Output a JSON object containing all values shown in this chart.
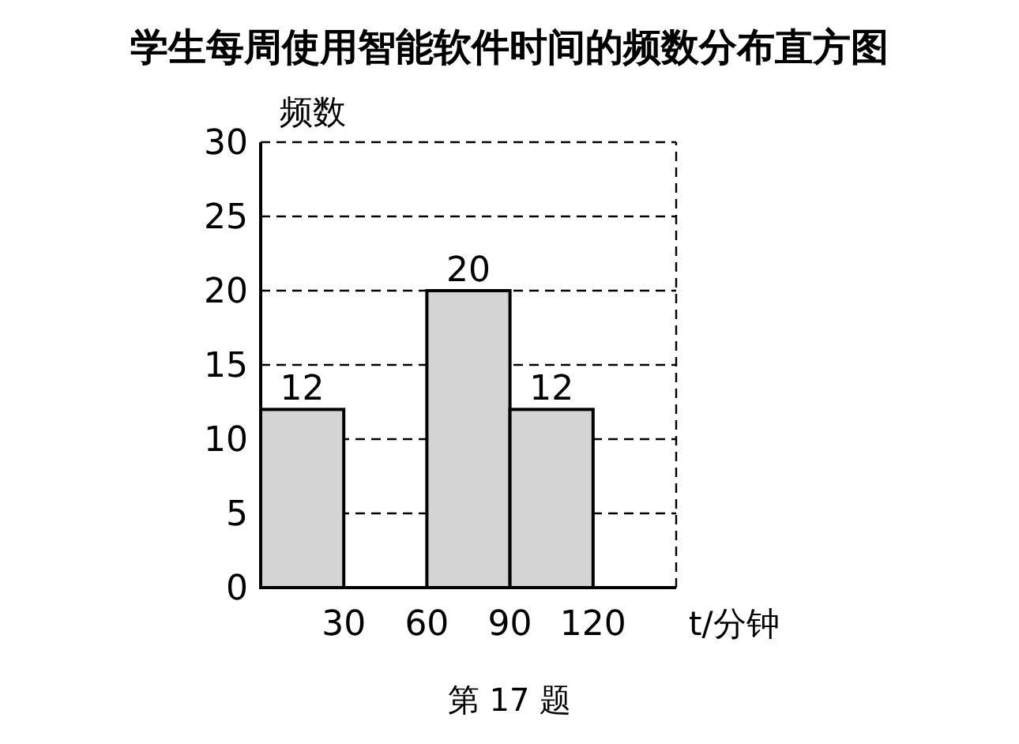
{
  "chart_data": {
    "type": "histogram",
    "title": "学生每周使用智能软件时间的频数分布直方图",
    "xlabel": "t/分钟",
    "ylabel": "频数",
    "bins": [
      0,
      30,
      60,
      90,
      120
    ],
    "values": [
      12,
      null,
      20,
      12
    ],
    "color": "#d4d4d4",
    "data_labels": true,
    "xlim": [
      0,
      150
    ],
    "xticks": [
      30,
      60,
      90,
      120
    ],
    "ylim": [
      0,
      30
    ],
    "yticks": [
      0,
      5,
      10,
      15,
      20,
      25,
      30
    ],
    "grid": "y",
    "annotations": [
      "第 17 题"
    ]
  }
}
